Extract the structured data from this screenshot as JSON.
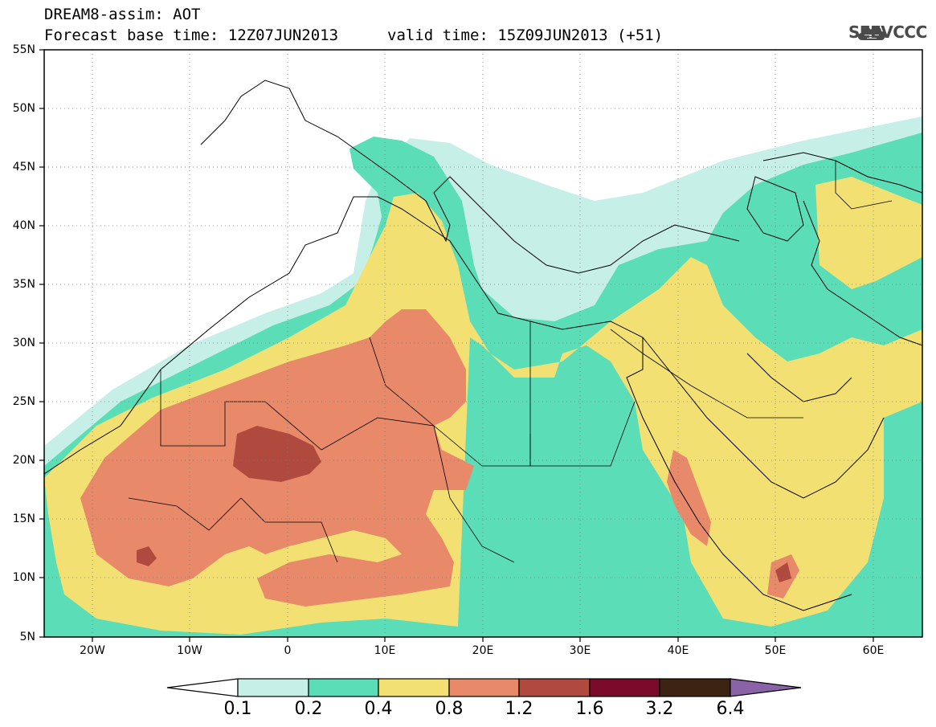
{
  "header": {
    "line1": "DREAM8-assim: AOT",
    "line2": "Forecast base time: 12Z07JUN2013",
    "line3": "valid time: 15Z09JUN2013 (+51)"
  },
  "logo": {
    "text": "SEEVCCC",
    "icon": "cloud-icon"
  },
  "map": {
    "latitude_labels": [
      "55N",
      "50N",
      "45N",
      "40N",
      "35N",
      "30N",
      "25N",
      "20N",
      "15N",
      "10N",
      "5N"
    ],
    "longitude_labels": [
      "20W",
      "10W",
      "0",
      "10E",
      "20E",
      "30E",
      "40E",
      "50E",
      "60E"
    ],
    "lat_range": [
      5,
      55
    ],
    "lon_range": [
      -25,
      65
    ],
    "gridlines": "dotted"
  },
  "colorbar": {
    "labels": [
      "0.1",
      "0.2",
      "0.4",
      "0.8",
      "1.2",
      "1.6",
      "3.2",
      "6.4"
    ],
    "colors": [
      "#ffffff",
      "#c6efe8",
      "#5bddb8",
      "#f3e072",
      "#e8896a",
      "#b04a3e",
      "#7c0a2a",
      "#3d2312",
      "#8a62a8"
    ]
  },
  "colors": {
    "level1": "#c6efe8",
    "level2": "#5bddb8",
    "level3": "#f3e072",
    "level4": "#e8896a",
    "level5": "#b04a3e"
  }
}
